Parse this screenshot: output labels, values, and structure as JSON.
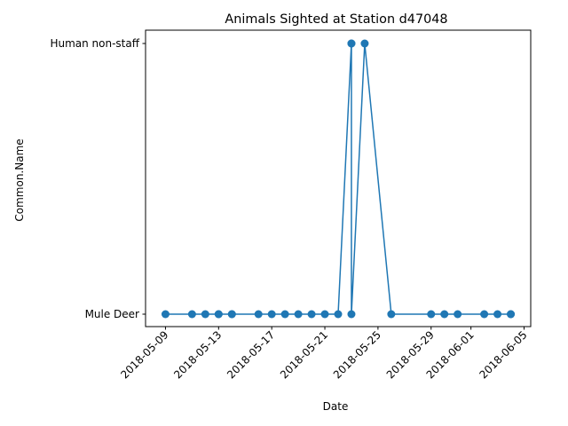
{
  "chart_data": {
    "type": "line",
    "title": "Animals Sighted at Station d47048",
    "xlabel": "Date",
    "ylabel": "Common.Name",
    "x_axis_type": "date",
    "xlim": [
      "2018-05-07T12:00",
      "2018-06-05T12:00"
    ],
    "x_ticks": [
      "2018-05-09",
      "2018-05-13",
      "2018-05-17",
      "2018-05-21",
      "2018-05-25",
      "2018-05-29",
      "2018-06-01",
      "2018-06-05"
    ],
    "y_categories": [
      "Mule Deer",
      "Human non-staff"
    ],
    "grid": false,
    "legend": "none",
    "color": "#1f77b4",
    "series": [
      {
        "points": [
          {
            "x": "2018-05-09",
            "y": "Mule Deer"
          },
          {
            "x": "2018-05-11",
            "y": "Mule Deer"
          },
          {
            "x": "2018-05-12",
            "y": "Mule Deer"
          },
          {
            "x": "2018-05-13",
            "y": "Mule Deer"
          },
          {
            "x": "2018-05-13",
            "y": "Mule Deer"
          },
          {
            "x": "2018-05-14",
            "y": "Mule Deer"
          },
          {
            "x": "2018-05-14",
            "y": "Mule Deer"
          },
          {
            "x": "2018-05-16",
            "y": "Mule Deer"
          },
          {
            "x": "2018-05-17",
            "y": "Mule Deer"
          },
          {
            "x": "2018-05-18",
            "y": "Mule Deer"
          },
          {
            "x": "2018-05-19",
            "y": "Mule Deer"
          },
          {
            "x": "2018-05-20",
            "y": "Mule Deer"
          },
          {
            "x": "2018-05-21",
            "y": "Mule Deer"
          },
          {
            "x": "2018-05-22",
            "y": "Mule Deer"
          },
          {
            "x": "2018-05-23",
            "y": "Human non-staff"
          },
          {
            "x": "2018-05-23",
            "y": "Human non-staff"
          },
          {
            "x": "2018-05-23",
            "y": "Mule Deer"
          },
          {
            "x": "2018-05-24",
            "y": "Human non-staff"
          },
          {
            "x": "2018-05-26",
            "y": "Mule Deer"
          },
          {
            "x": "2018-05-29",
            "y": "Mule Deer"
          },
          {
            "x": "2018-05-30",
            "y": "Mule Deer"
          },
          {
            "x": "2018-05-31",
            "y": "Mule Deer"
          },
          {
            "x": "2018-06-02",
            "y": "Mule Deer"
          },
          {
            "x": "2018-06-03",
            "y": "Mule Deer"
          },
          {
            "x": "2018-06-04",
            "y": "Mule Deer"
          },
          {
            "x": "2018-06-04",
            "y": "Mule Deer"
          }
        ]
      }
    ]
  }
}
